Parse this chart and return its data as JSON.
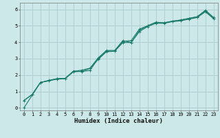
{
  "title": "",
  "xlabel": "Humidex (Indice chaleur)",
  "ylabel": "",
  "bg_color": "#cce8e8",
  "grid_color": "#aacccc",
  "line_color": "#1a7a6a",
  "x_ticks": [
    0,
    1,
    2,
    3,
    4,
    5,
    6,
    7,
    8,
    9,
    10,
    11,
    12,
    13,
    14,
    15,
    16,
    17,
    18,
    19,
    20,
    21,
    22,
    23
  ],
  "y_ticks": [
    0,
    1,
    2,
    3,
    4,
    5,
    6
  ],
  "xlim": [
    -0.5,
    23.5
  ],
  "ylim": [
    -0.15,
    6.4
  ],
  "line1_x": [
    0,
    1,
    2,
    3,
    4,
    5,
    6,
    7,
    8,
    9,
    10,
    11,
    12,
    13,
    14,
    15,
    16,
    17,
    18,
    19,
    20,
    21,
    22,
    23
  ],
  "line1_y": [
    0.45,
    0.82,
    1.55,
    1.68,
    1.78,
    1.8,
    2.25,
    2.22,
    2.28,
    3.0,
    3.45,
    3.45,
    4.05,
    4.1,
    4.8,
    5.0,
    5.22,
    5.18,
    5.28,
    5.35,
    5.45,
    5.55,
    5.95,
    5.5
  ],
  "line2_x": [
    0,
    1,
    2,
    3,
    4,
    5,
    6,
    7,
    8,
    9,
    10,
    11,
    12,
    13,
    14,
    15,
    16,
    17,
    18,
    19,
    20,
    21,
    22,
    23
  ],
  "line2_y": [
    0.45,
    0.82,
    1.55,
    1.65,
    1.78,
    1.8,
    2.22,
    2.3,
    2.42,
    3.05,
    3.5,
    3.5,
    4.1,
    3.98,
    4.72,
    5.0,
    5.2,
    5.18,
    5.28,
    5.35,
    5.45,
    5.55,
    5.9,
    5.45
  ],
  "line3_x": [
    0,
    2,
    3,
    4,
    5,
    6,
    7,
    8,
    9,
    10,
    11,
    12,
    13,
    14,
    15,
    16,
    17,
    18,
    19,
    20,
    21,
    22,
    23
  ],
  "line3_y": [
    0.0,
    1.55,
    1.65,
    1.75,
    1.78,
    2.2,
    2.22,
    2.4,
    2.95,
    3.42,
    3.45,
    3.98,
    3.98,
    4.65,
    4.95,
    5.15,
    5.15,
    5.25,
    5.3,
    5.4,
    5.5,
    5.85,
    5.42
  ],
  "xlabel_fontsize": 6.5,
  "tick_fontsize": 5.0,
  "lw": 0.8,
  "marker_size": 2.5
}
